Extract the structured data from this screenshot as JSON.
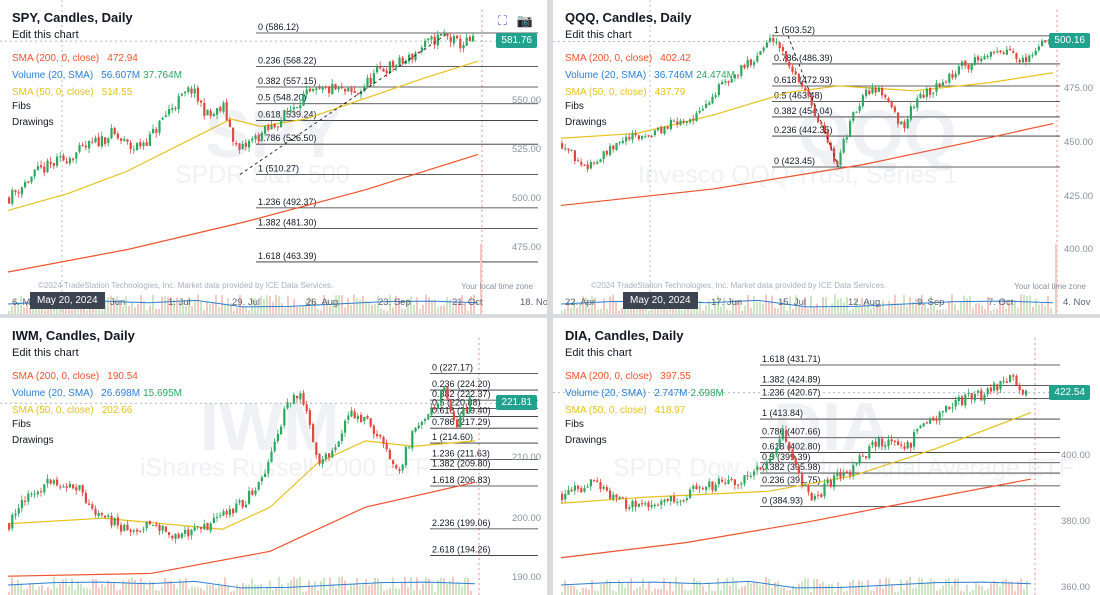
{
  "charts": [
    {
      "id": "spy",
      "title": "SPY, Candles, Daily",
      "edit_label": "Edit this chart",
      "indicators": [
        {
          "label": "SMA (200, 0, close)",
          "value": "472.94",
          "color": "#f0522c"
        },
        {
          "label": "Volume (20, SMA)",
          "value": "56.607M",
          "value2": "37.764M",
          "color": "#2a7fd4"
        },
        {
          "label": "SMA (50, 0, close)",
          "value": "514.55",
          "color": "#e8c21c"
        }
      ],
      "fibs_label": "Fibs",
      "drawings_label": "Drawings",
      "watermark_symbol": "SPY",
      "watermark_name": "SPDR S&P 500",
      "last_price": "581.76",
      "x_ticks": [
        "6. M",
        "Jun",
        "1. Jul",
        "29. Jul",
        "26. Aug",
        "23. Sep",
        "21. Oct",
        "18. Nov"
      ],
      "y_ticks": [
        "550.00",
        "525.00",
        "500.00",
        "475.00"
      ],
      "date_badge": "May 20, 2024",
      "copyright": "©2024 TradeStation Technologies, Inc. Market data provided by ICE Data Services.",
      "timezone": "Your local time zone",
      "fib_levels": [
        "0 (586.12)",
        "0.236 (568.22)",
        "0.382 (557.15)",
        "0.5 (548.20)",
        "0.618 (539.24)",
        "0.786 (526.50)",
        "1 (510.27)",
        "1.236 (492.37)",
        "1.382 (481.30)",
        "1.618 (463.39)"
      ],
      "show_tool_icons": true,
      "chart_data": {
        "type": "candlestick",
        "interval": "Daily",
        "y_range": [
          458,
          592
        ],
        "start_price": 498,
        "path": [
          [
            0,
            498
          ],
          [
            10,
            512
          ],
          [
            22,
            521
          ],
          [
            35,
            532
          ],
          [
            42,
            524
          ],
          [
            48,
            530
          ],
          [
            55,
            546
          ],
          [
            62,
            556
          ],
          [
            68,
            541
          ],
          [
            73,
            546
          ],
          [
            78,
            522
          ],
          [
            83,
            529
          ],
          [
            90,
            536
          ],
          [
            100,
            552
          ],
          [
            110,
            556
          ],
          [
            118,
            553
          ],
          [
            126,
            566
          ],
          [
            135,
            571
          ],
          [
            142,
            580
          ],
          [
            148,
            585
          ],
          [
            153,
            580
          ],
          [
            158,
            581.76
          ]
        ],
        "sma200": [
          [
            0,
            458
          ],
          [
            40,
            470
          ],
          [
            80,
            485
          ],
          [
            120,
            502
          ],
          [
            158,
            521
          ]
        ],
        "sma50": [
          [
            0,
            491
          ],
          [
            20,
            500
          ],
          [
            40,
            512
          ],
          [
            60,
            528
          ],
          [
            75,
            540
          ],
          [
            85,
            536
          ],
          [
            100,
            540
          ],
          [
            120,
            551
          ],
          [
            140,
            562
          ],
          [
            158,
            571
          ]
        ],
        "current_price": 581.76,
        "fib_trend_line": [
          [
            78,
            510.27
          ],
          [
            148,
            586.12
          ]
        ]
      }
    },
    {
      "id": "qqq",
      "title": "QQQ, Candles, Daily",
      "edit_label": "Edit this chart",
      "indicators": [
        {
          "label": "SMA (200, 0, close)",
          "value": "402.42",
          "color": "#f0522c"
        },
        {
          "label": "Volume (20, SMA)",
          "value": "36.746M",
          "value2": "24.474M",
          "color": "#2a7fd4"
        },
        {
          "label": "SMA (50, 0, close)",
          "value": "437.79",
          "color": "#e8c21c"
        }
      ],
      "fibs_label": "Fibs",
      "drawings_label": "Drawings",
      "watermark_symbol": "QQQ",
      "watermark_name": "Invesco QQQ Trust, Series 1",
      "last_price": "500.16",
      "x_ticks": [
        "22. Apr",
        "May 20, 2024",
        "17. Jun",
        "15. Jul",
        "12. Aug",
        "9. Sep",
        "7. Oct",
        "4. Nov"
      ],
      "y_ticks": [
        "475.00",
        "450.00",
        "425.00",
        "400.00"
      ],
      "date_badge": "May 20, 2024",
      "copyright": "©2024 TradeStation Technologies, Inc. Market data provided by ICE Data Services.",
      "timezone": "Your local time zone",
      "fib_levels": [
        "1 (503.52)",
        "0.786 (486.39)",
        "0.618 (472.93)",
        "0.5 (463.48)",
        "0.382 (454.04)",
        "0.236 (442.35)",
        "0 (423.45)"
      ],
      "show_tool_icons": false,
      "chart_data": {
        "type": "candlestick",
        "interval": "Daily",
        "y_range": [
          385,
          512
        ],
        "start_price": 438,
        "path": [
          [
            0,
            438
          ],
          [
            8,
            424
          ],
          [
            15,
            428
          ],
          [
            25,
            440
          ],
          [
            35,
            443
          ],
          [
            45,
            450
          ],
          [
            55,
            455
          ],
          [
            62,
            470
          ],
          [
            70,
            480
          ],
          [
            78,
            492
          ],
          [
            85,
            503
          ],
          [
            92,
            484
          ],
          [
            98,
            470
          ],
          [
            104,
            448
          ],
          [
            110,
            425
          ],
          [
            116,
            452
          ],
          [
            122,
            470
          ],
          [
            128,
            470
          ],
          [
            133,
            455
          ],
          [
            137,
            448
          ],
          [
            142,
            465
          ],
          [
            150,
            472
          ],
          [
            160,
            485
          ],
          [
            170,
            490
          ],
          [
            180,
            495
          ],
          [
            185,
            488
          ],
          [
            190,
            496
          ],
          [
            195,
            500.16
          ]
        ],
        "sma200": [
          [
            0,
            400
          ],
          [
            60,
            410
          ],
          [
            120,
            425
          ],
          [
            160,
            438
          ],
          [
            195,
            450
          ]
        ],
        "sma50": [
          [
            0,
            441
          ],
          [
            30,
            444
          ],
          [
            60,
            455
          ],
          [
            90,
            469
          ],
          [
            110,
            473
          ],
          [
            140,
            470
          ],
          [
            170,
            475
          ],
          [
            195,
            481
          ]
        ],
        "current_price": 500.16,
        "fib_trend_line": [
          [
            90,
            503.52
          ],
          [
            110,
            423.45
          ]
        ]
      }
    },
    {
      "id": "iwm",
      "title": "IWM, Candles, Daily",
      "edit_label": "Edit this chart",
      "indicators": [
        {
          "label": "SMA (200, 0, close)",
          "value": "190.54",
          "color": "#f0522c"
        },
        {
          "label": "Volume (20, SMA)",
          "value": "26.698M",
          "value2": "15.695M",
          "color": "#2a7fd4"
        },
        {
          "label": "SMA (50, 0, close)",
          "value": "202.66",
          "color": "#e8c21c"
        }
      ],
      "fibs_label": "Fibs",
      "drawings_label": "Drawings",
      "watermark_symbol": "IWM",
      "watermark_name": "iShares Russell 2000 ETF",
      "last_price": "221.81",
      "x_ticks": [],
      "y_ticks": [
        "210.00",
        "200.00",
        "190.00"
      ],
      "date_badge": "",
      "copyright": "",
      "timezone": "",
      "fib_levels": [
        "0 (227.17)",
        "0.236 (224.20)",
        "0.382 (222.37)",
        "0.5 (220.88)",
        "0.618 (219.40)",
        "0.786 (217.29)",
        "1 (214.60)",
        "1.236 (211.63)",
        "1.382 (209.80)",
        "1.618 (206.83)",
        "2.236 (199.06)",
        "2.618 (194.26)"
      ],
      "show_tool_icons": false,
      "chart_data": {
        "type": "candlestick",
        "interval": "Daily",
        "y_range": [
          188,
          230
        ],
        "start_price": 200,
        "path": [
          [
            0,
            200
          ],
          [
            10,
            206
          ],
          [
            20,
            208
          ],
          [
            30,
            206
          ],
          [
            40,
            201
          ],
          [
            50,
            199
          ],
          [
            60,
            200
          ],
          [
            70,
            198
          ],
          [
            80,
            199
          ],
          [
            90,
            201
          ],
          [
            100,
            204
          ],
          [
            110,
            210
          ],
          [
            118,
            222
          ],
          [
            125,
            223
          ],
          [
            132,
            210
          ],
          [
            138,
            214
          ],
          [
            145,
            220
          ],
          [
            152,
            219
          ],
          [
            160,
            214
          ],
          [
            166,
            210
          ],
          [
            172,
            217
          ],
          [
            178,
            220
          ],
          [
            185,
            224
          ],
          [
            190,
            218
          ],
          [
            196,
            221.81
          ]
        ],
        "sma200": [
          [
            0,
            190.5
          ],
          [
            60,
            191
          ],
          [
            110,
            195
          ],
          [
            150,
            203
          ],
          [
            196,
            207.5
          ]
        ],
        "sma50": [
          [
            0,
            200
          ],
          [
            40,
            201
          ],
          [
            90,
            199
          ],
          [
            110,
            203
          ],
          [
            130,
            211
          ],
          [
            150,
            215
          ],
          [
            170,
            214
          ],
          [
            196,
            215
          ]
        ],
        "current_price": 221.81,
        "fib_trend_line": []
      }
    },
    {
      "id": "dia",
      "title": "DIA, Candles, Daily",
      "edit_label": "Edit this chart",
      "indicators": [
        {
          "label": "SMA (200, 0, close)",
          "value": "397.55",
          "color": "#f0522c"
        },
        {
          "label": "Volume (20, SMA)",
          "value": "2.747M",
          "value2": "2.698M",
          "color": "#2a7fd4"
        },
        {
          "label": "SMA (50, 0, close)",
          "value": "418.97",
          "color": "#e8c21c"
        }
      ],
      "fibs_label": "Fibs",
      "drawings_label": "Drawings",
      "watermark_symbol": "DIA",
      "watermark_name": "SPDR Dow Jones Industrial Average ETF",
      "last_price": "422.54",
      "x_ticks": [],
      "y_ticks": [
        "400.00",
        "380.00",
        "360.00"
      ],
      "date_badge": "",
      "copyright": "",
      "timezone": "",
      "fib_levels": [
        "1.618 (431.71)",
        "1.382 (424.89)",
        "1.236 (420.67)",
        "1 (413.84)",
        "0.786 (407.66)",
        "0.618 (402.80)",
        "0.5 (399.39)",
        "0.382 (395.98)",
        "0.236 (391.75)",
        "0 (384.93)"
      ],
      "show_tool_icons": false,
      "chart_data": {
        "type": "candlestick",
        "interval": "Daily",
        "y_range": [
          358,
          436
        ],
        "start_price": 389,
        "path": [
          [
            0,
            389
          ],
          [
            15,
            393
          ],
          [
            30,
            386
          ],
          [
            40,
            384
          ],
          [
            55,
            387
          ],
          [
            70,
            392
          ],
          [
            85,
            393
          ],
          [
            100,
            398
          ],
          [
            108,
            410
          ],
          [
            115,
            395
          ],
          [
            122,
            386
          ],
          [
            130,
            393
          ],
          [
            140,
            396
          ],
          [
            150,
            404
          ],
          [
            160,
            408
          ],
          [
            168,
            404
          ],
          [
            175,
            412
          ],
          [
            185,
            416
          ],
          [
            195,
            420
          ],
          [
            205,
            422
          ],
          [
            212,
            425
          ],
          [
            218,
            428
          ],
          [
            222,
            424
          ],
          [
            226,
            422.54
          ]
        ],
        "sma200": [
          [
            0,
            368
          ],
          [
            60,
            373
          ],
          [
            120,
            380
          ],
          [
            180,
            388
          ],
          [
            226,
            394
          ]
        ],
        "sma50": [
          [
            0,
            386
          ],
          [
            40,
            388
          ],
          [
            100,
            390
          ],
          [
            140,
            395
          ],
          [
            180,
            404
          ],
          [
            226,
            416
          ]
        ],
        "current_price": 422.54,
        "fib_trend_line": []
      }
    }
  ]
}
